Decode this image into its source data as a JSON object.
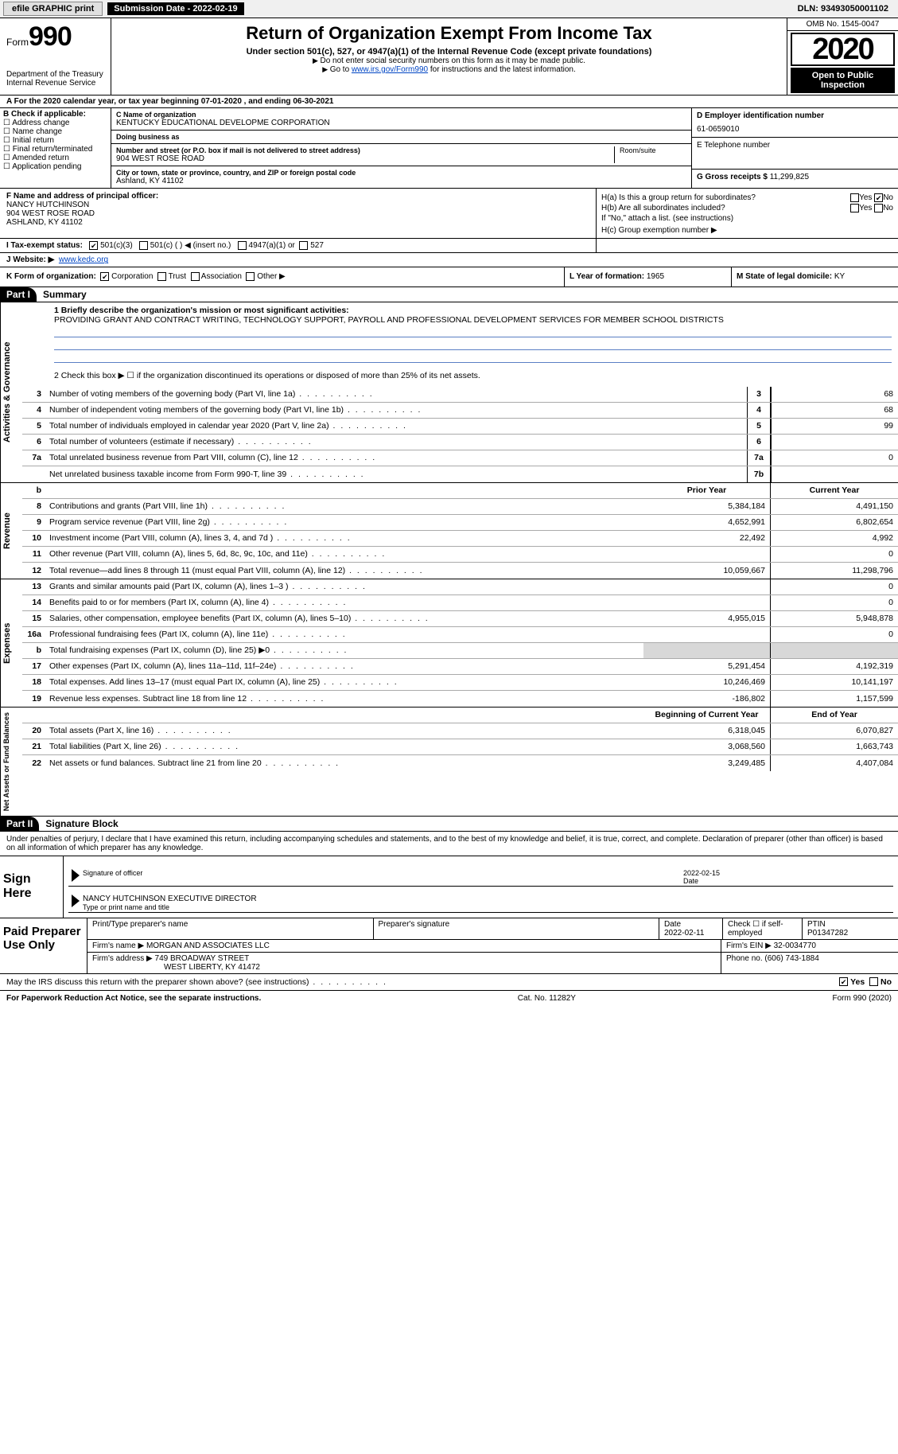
{
  "topbar": {
    "efile": "efile GRAPHIC print",
    "submission": "Submission Date - 2022-02-19",
    "dln": "DLN: 93493050001102"
  },
  "header": {
    "form": "Form",
    "formnum": "990",
    "dept": "Department of the Treasury\nInternal Revenue Service",
    "title": "Return of Organization Exempt From Income Tax",
    "sub": "Under section 501(c), 527, or 4947(a)(1) of the Internal Revenue Code (except private foundations)",
    "note1": "Do not enter social security numbers on this form as it may be made public.",
    "note2_pre": "Go to ",
    "note2_link": "www.irs.gov/Form990",
    "note2_post": " for instructions and the latest information.",
    "omb": "OMB No. 1545-0047",
    "year": "2020",
    "open": "Open to Public Inspection"
  },
  "rowA": "A For the 2020 calendar year, or tax year beginning 07-01-2020   , and ending 06-30-2021",
  "B": {
    "hdr": "B Check if applicable:",
    "items": [
      "Address change",
      "Name change",
      "Initial return",
      "Final return/terminated",
      "Amended return",
      "Application pending"
    ]
  },
  "C": {
    "name_lbl": "C Name of organization",
    "name": "KENTUCKY EDUCATIONAL DEVELOPME CORPORATION",
    "dba_lbl": "Doing business as",
    "dba": "",
    "addr_lbl": "Number and street (or P.O. box if mail is not delivered to street address)",
    "addr": "904 WEST ROSE ROAD",
    "room_lbl": "Room/suite",
    "city_lbl": "City or town, state or province, country, and ZIP or foreign postal code",
    "city": "Ashland, KY  41102"
  },
  "D": {
    "lbl": "D Employer identification number",
    "val": "61-0659010"
  },
  "E": {
    "lbl": "E Telephone number",
    "val": ""
  },
  "G": {
    "lbl": "G Gross receipts $",
    "val": "11,299,825"
  },
  "F": {
    "lbl": "F  Name and address of principal officer:",
    "name": "NANCY HUTCHINSON",
    "addr1": "904 WEST ROSE ROAD",
    "addr2": "ASHLAND, KY  41102"
  },
  "H": {
    "a_lbl": "H(a)  Is this a group return for subordinates?",
    "a_yes": "Yes",
    "a_no": "No",
    "b_lbl": "H(b)  Are all subordinates included?",
    "note": "If \"No,\" attach a list. (see instructions)",
    "c_lbl": "H(c)  Group exemption number ▶"
  },
  "I": {
    "lbl": "I   Tax-exempt status:",
    "opts": [
      "501(c)(3)",
      "501(c) (  ) ◀ (insert no.)",
      "4947(a)(1) or",
      "527"
    ]
  },
  "J": {
    "lbl": "J   Website: ▶",
    "val": "www.kedc.org"
  },
  "K": {
    "lbl": "K Form of organization:",
    "opts": [
      "Corporation",
      "Trust",
      "Association",
      "Other ▶"
    ]
  },
  "L": {
    "lbl": "L Year of formation:",
    "val": "1965"
  },
  "M": {
    "lbl": "M State of legal domicile:",
    "val": "KY"
  },
  "part1": {
    "hdr": "Part I",
    "title": "Summary"
  },
  "summary": {
    "line1_lbl": "1  Briefly describe the organization's mission or most significant activities:",
    "line1_val": "PROVIDING GRANT AND CONTRACT WRITING, TECHNOLOGY SUPPORT, PAYROLL AND PROFESSIONAL DEVELOPMENT SERVICES FOR MEMBER SCHOOL DISTRICTS",
    "line2": "2   Check this box ▶ ☐  if the organization discontinued its operations or disposed of more than 25% of its net assets."
  },
  "gov_lines": [
    {
      "n": "3",
      "d": "Number of voting members of the governing body (Part VI, line 1a)",
      "box": "3",
      "v": "68"
    },
    {
      "n": "4",
      "d": "Number of independent voting members of the governing body (Part VI, line 1b)",
      "box": "4",
      "v": "68"
    },
    {
      "n": "5",
      "d": "Total number of individuals employed in calendar year 2020 (Part V, line 2a)",
      "box": "5",
      "v": "99"
    },
    {
      "n": "6",
      "d": "Total number of volunteers (estimate if necessary)",
      "box": "6",
      "v": ""
    },
    {
      "n": "7a",
      "d": "Total unrelated business revenue from Part VIII, column (C), line 12",
      "box": "7a",
      "v": "0"
    },
    {
      "n": "",
      "d": "Net unrelated business taxable income from Form 990-T, line 39",
      "box": "7b",
      "v": ""
    }
  ],
  "rev_hdr": {
    "c1": "Prior Year",
    "c2": "Current Year"
  },
  "rev_lines": [
    {
      "n": "8",
      "d": "Contributions and grants (Part VIII, line 1h)",
      "v1": "5,384,184",
      "v2": "4,491,150"
    },
    {
      "n": "9",
      "d": "Program service revenue (Part VIII, line 2g)",
      "v1": "4,652,991",
      "v2": "6,802,654"
    },
    {
      "n": "10",
      "d": "Investment income (Part VIII, column (A), lines 3, 4, and 7d )",
      "v1": "22,492",
      "v2": "4,992"
    },
    {
      "n": "11",
      "d": "Other revenue (Part VIII, column (A), lines 5, 6d, 8c, 9c, 10c, and 11e)",
      "v1": "",
      "v2": "0"
    },
    {
      "n": "12",
      "d": "Total revenue—add lines 8 through 11 (must equal Part VIII, column (A), line 12)",
      "v1": "10,059,667",
      "v2": "11,298,796"
    }
  ],
  "exp_lines": [
    {
      "n": "13",
      "d": "Grants and similar amounts paid (Part IX, column (A), lines 1–3 )",
      "v1": "",
      "v2": "0"
    },
    {
      "n": "14",
      "d": "Benefits paid to or for members (Part IX, column (A), line 4)",
      "v1": "",
      "v2": "0"
    },
    {
      "n": "15",
      "d": "Salaries, other compensation, employee benefits (Part IX, column (A), lines 5–10)",
      "v1": "4,955,015",
      "v2": "5,948,878"
    },
    {
      "n": "16a",
      "d": "Professional fundraising fees (Part IX, column (A), line 11e)",
      "v1": "",
      "v2": "0"
    },
    {
      "n": "b",
      "d": "Total fundraising expenses (Part IX, column (D), line 25) ▶0",
      "v1": "shaded",
      "v2": "shaded"
    },
    {
      "n": "17",
      "d": "Other expenses (Part IX, column (A), lines 11a–11d, 11f–24e)",
      "v1": "5,291,454",
      "v2": "4,192,319"
    },
    {
      "n": "18",
      "d": "Total expenses. Add lines 13–17 (must equal Part IX, column (A), line 25)",
      "v1": "10,246,469",
      "v2": "10,141,197"
    },
    {
      "n": "19",
      "d": "Revenue less expenses. Subtract line 18 from line 12",
      "v1": "-186,802",
      "v2": "1,157,599"
    }
  ],
  "na_hdr": {
    "c1": "Beginning of Current Year",
    "c2": "End of Year"
  },
  "na_lines": [
    {
      "n": "20",
      "d": "Total assets (Part X, line 16)",
      "v1": "6,318,045",
      "v2": "6,070,827"
    },
    {
      "n": "21",
      "d": "Total liabilities (Part X, line 26)",
      "v1": "3,068,560",
      "v2": "1,663,743"
    },
    {
      "n": "22",
      "d": "Net assets or fund balances. Subtract line 21 from line 20",
      "v1": "3,249,485",
      "v2": "4,407,084"
    }
  ],
  "sides": {
    "gov": "Activities & Governance",
    "rev": "Revenue",
    "exp": "Expenses",
    "na": "Net Assets or Fund Balances"
  },
  "part2": {
    "hdr": "Part II",
    "title": "Signature Block"
  },
  "sig_decl": "Under penalties of perjury, I declare that I have examined this return, including accompanying schedules and statements, and to the best of my knowledge and belief, it is true, correct, and complete. Declaration of preparer (other than officer) is based on all information of which preparer has any knowledge.",
  "sign": {
    "here": "Sign Here",
    "sig_lbl": "Signature of officer",
    "date_lbl": "Date",
    "date": "2022-02-15",
    "name": "NANCY HUTCHINSON  EXECUTIVE DIRECTOR",
    "name_lbl": "Type or print name and title"
  },
  "prep": {
    "hdr": "Paid Preparer Use Only",
    "r1": {
      "c1": "Print/Type preparer's name",
      "c2": "Preparer's signature",
      "c3": "Date",
      "c3v": "2022-02-11",
      "c4": "Check ☐ if self-employed",
      "c5": "PTIN",
      "c5v": "P01347282"
    },
    "r2": {
      "c1": "Firm's name    ▶",
      "c1v": "MORGAN AND ASSOCIATES LLC",
      "c2": "Firm's EIN ▶",
      "c2v": "32-0034770"
    },
    "r3": {
      "c1": "Firm's address ▶",
      "c1v": "749 BROADWAY STREET",
      "c1v2": "WEST LIBERTY, KY  41472",
      "c2": "Phone no.",
      "c2v": "(606) 743-1884"
    }
  },
  "discuss": {
    "q": "May the IRS discuss this return with the preparer shown above? (see instructions)",
    "yes": "Yes",
    "no": "No"
  },
  "footer": {
    "left": "For Paperwork Reduction Act Notice, see the separate instructions.",
    "mid": "Cat. No. 11282Y",
    "right": "Form 990 (2020)"
  },
  "colors": {
    "link": "#0045c4",
    "ul": "#5a7fc4",
    "shade": "#d8d8d8"
  }
}
